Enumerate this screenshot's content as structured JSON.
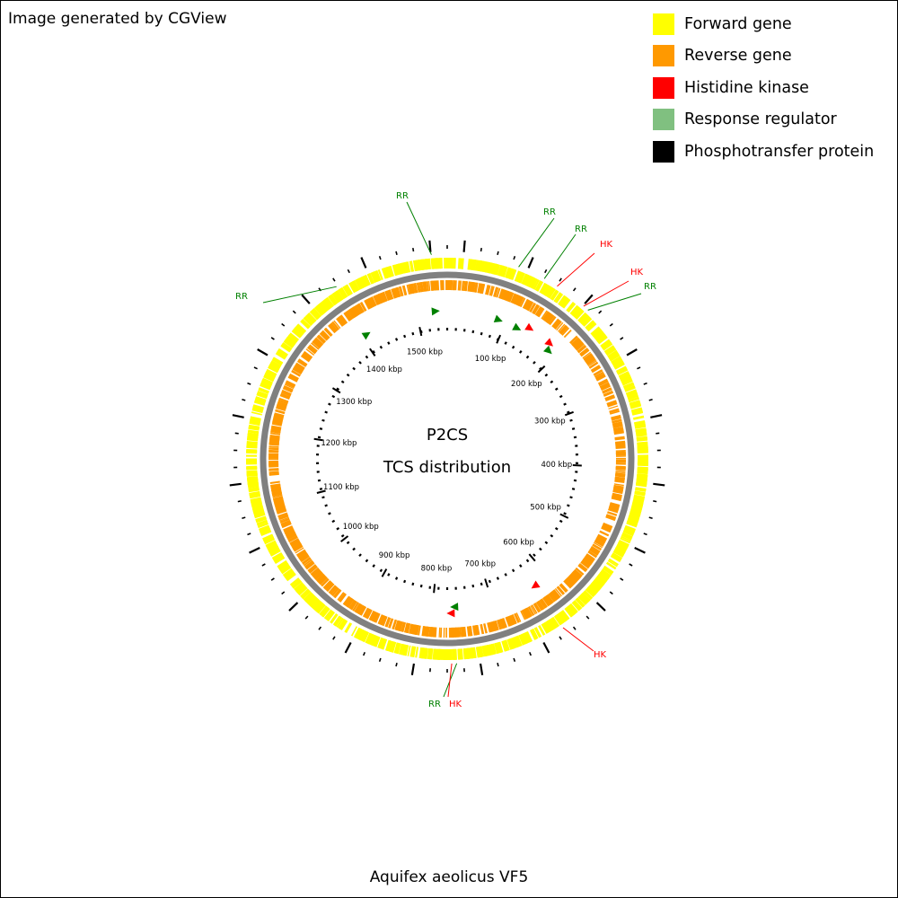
{
  "header": {
    "credit": "Image generated by CGView"
  },
  "legend": [
    {
      "label": "Forward gene",
      "color": "#ffff00"
    },
    {
      "label": "Reverse gene",
      "color": "#ff9900"
    },
    {
      "label": "Histidine kinase",
      "color": "#ff0000"
    },
    {
      "label": "Response regulator",
      "color": "#80c080"
    },
    {
      "label": "Phosphotransfer protein",
      "color": "#000000"
    }
  ],
  "map": {
    "center_title": "P2CS",
    "center_subtitle": "TCS distribution",
    "organism": "Aquifex aeolicus VF5",
    "genome_length_kbp": 1551,
    "ruler_labels": [
      "100 kbp",
      "200 kbp",
      "300 kbp",
      "400 kbp",
      "500 kbp",
      "600 kbp",
      "700 kbp",
      "800 kbp",
      "900 kbp",
      "1000 kbp",
      "1100 kbp",
      "1200 kbp",
      "1300 kbp",
      "1400 kbp",
      "1500 kbp"
    ],
    "ruler_positions_kbp": [
      100,
      200,
      300,
      400,
      500,
      600,
      700,
      800,
      900,
      1000,
      1100,
      1200,
      1300,
      1400,
      1500
    ],
    "feature_colors": {
      "forward": "#ffff00",
      "reverse": "#ff9900",
      "backbone": "#808080",
      "hk": "#ff0000",
      "rr": "#008000",
      "phosphotransfer": "#000000"
    },
    "tcs_features": [
      {
        "type": "RR",
        "position_kbp": 1532
      },
      {
        "type": "RR",
        "position_kbp": 88
      },
      {
        "type": "RR",
        "position_kbp": 122
      },
      {
        "type": "HK",
        "position_kbp": 140
      },
      {
        "type": "HK",
        "position_kbp": 180
      },
      {
        "type": "RR",
        "position_kbp": 187
      },
      {
        "type": "RR",
        "position_kbp": 1410
      },
      {
        "type": "HK",
        "position_kbp": 627
      },
      {
        "type": "RR",
        "position_kbp": 764
      },
      {
        "type": "HK",
        "position_kbp": 770
      }
    ],
    "callout_labels": [
      "RR",
      "RR",
      "RR",
      "HK",
      "HK",
      "RR",
      "RR",
      "HK",
      "RR",
      "HK"
    ]
  }
}
